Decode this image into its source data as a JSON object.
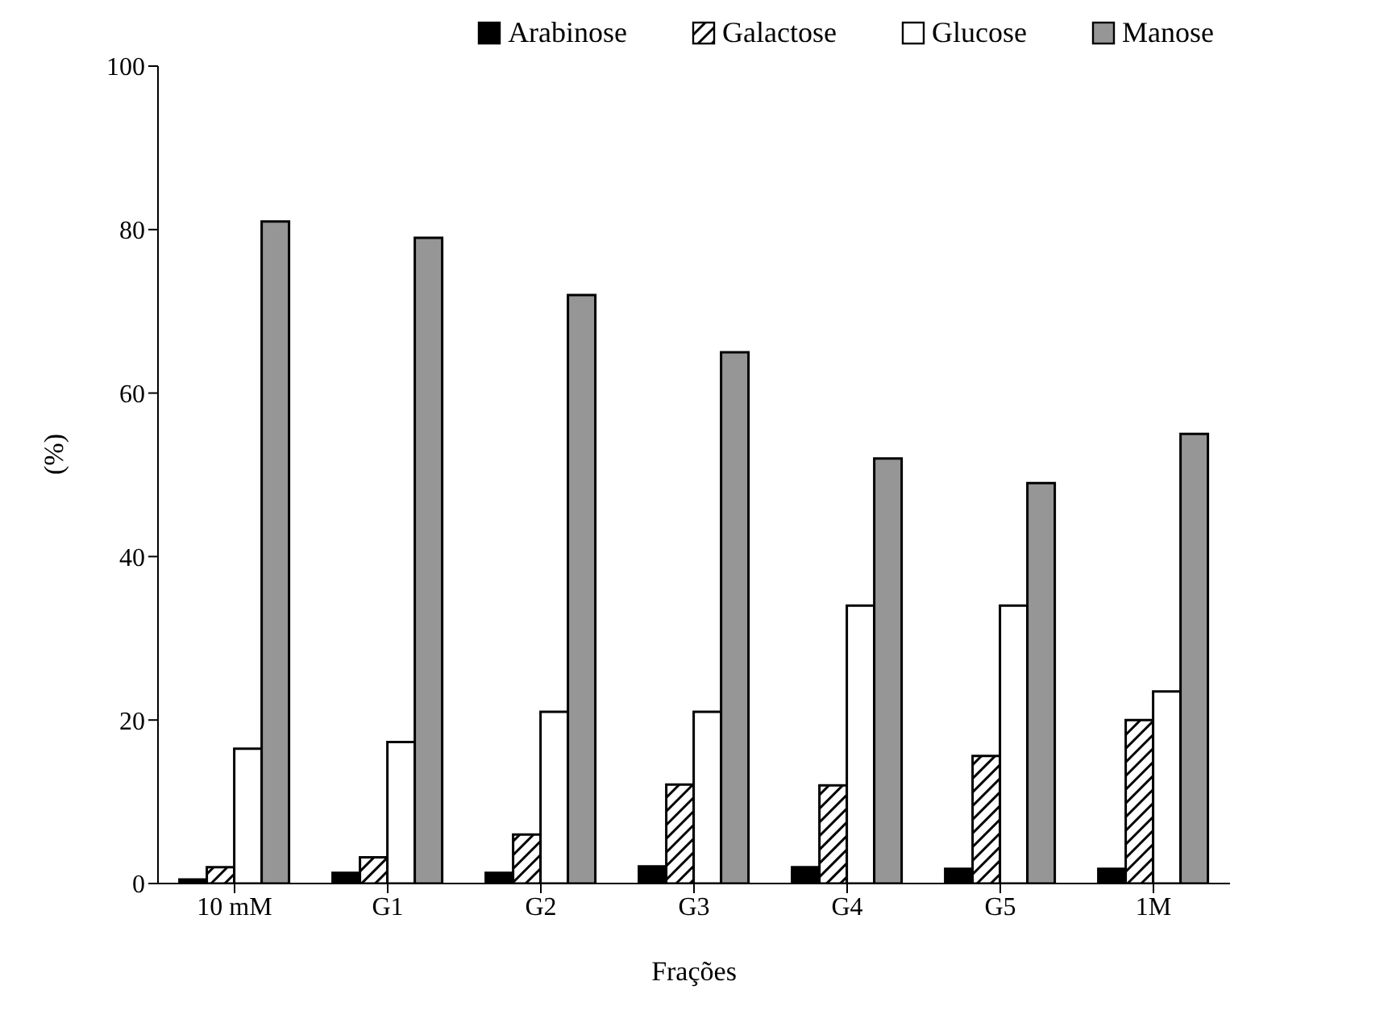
{
  "chart_data": {
    "type": "bar",
    "xlabel": "Frações",
    "ylabel": "(%)",
    "categories": [
      "10 mM",
      "G1",
      "G2",
      "G3",
      "G4",
      "G5",
      "1M"
    ],
    "series": [
      {
        "name": "Arabinose",
        "color": "#000000",
        "values": [
          0.5,
          1.3,
          1.3,
          2.1,
          2,
          1.8,
          1.8
        ]
      },
      {
        "name": "Galactose",
        "color": "#000000",
        "values": [
          2,
          3.2,
          6,
          12.1,
          12,
          15.6,
          20
        ]
      },
      {
        "name": "Glucose",
        "color": "#ffffff",
        "values": [
          16.5,
          17.3,
          21,
          21,
          34,
          34,
          23.5
        ]
      },
      {
        "name": "Manose",
        "color": "#969696",
        "values": [
          81,
          79,
          72,
          65,
          52,
          49,
          55
        ]
      }
    ],
    "ylim": [
      0,
      100
    ],
    "yticks": [
      0,
      20,
      40,
      60,
      80,
      100
    ],
    "grid": false,
    "legend": "top"
  }
}
